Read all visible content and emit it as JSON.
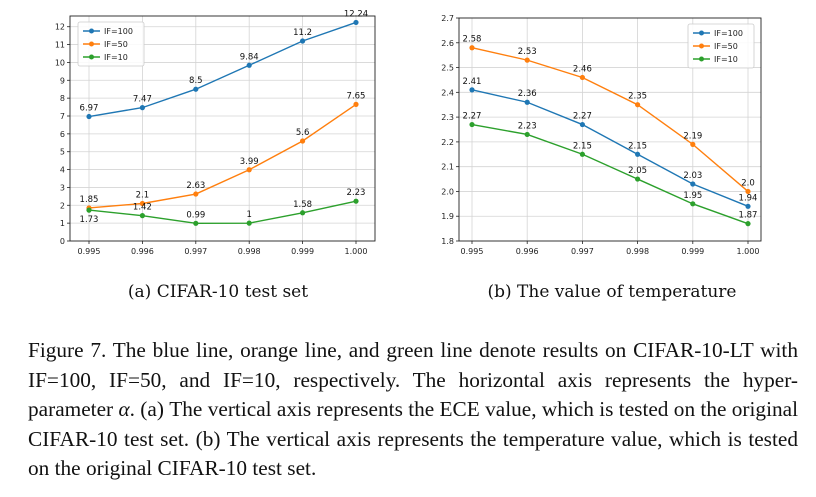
{
  "colors": {
    "blue": "#1f77b4",
    "orange": "#ff7f0e",
    "green": "#2ca02c"
  },
  "chart_data": [
    {
      "type": "line",
      "x": [
        "0.995",
        "0.996",
        "0.997",
        "0.998",
        "0.999",
        "1.000"
      ],
      "yticks": [
        "0",
        "1",
        "2",
        "3",
        "4",
        "5",
        "6",
        "7",
        "8",
        "9",
        "10",
        "11",
        "12"
      ],
      "ylim": [
        0,
        12.6
      ],
      "grid": true,
      "legend_position": "top-left",
      "series": [
        {
          "name": "IF=100",
          "values": [
            6.97,
            7.47,
            8.5,
            9.84,
            11.2,
            12.24
          ],
          "labels": [
            "6.97",
            "7.47",
            "8.5",
            "9.84",
            "11.2",
            "12.24"
          ]
        },
        {
          "name": "IF=50",
          "values": [
            1.85,
            2.1,
            2.63,
            3.99,
            5.6,
            7.65
          ],
          "labels": [
            "1.85",
            "2.1",
            "2.63",
            "3.99",
            "5.6",
            "7.65"
          ]
        },
        {
          "name": "IF=10",
          "values": [
            1.73,
            1.42,
            0.99,
            1.0,
            1.58,
            2.23
          ],
          "labels": [
            "1.73",
            "1.42",
            "0.99",
            "1",
            "1.58",
            "2.23"
          ]
        }
      ]
    },
    {
      "type": "line",
      "x": [
        "0.995",
        "0.996",
        "0.997",
        "0.998",
        "0.999",
        "1.000"
      ],
      "yticks": [
        "1.8",
        "1.9",
        "2.0",
        "2.1",
        "2.2",
        "2.3",
        "2.4",
        "2.5",
        "2.6",
        "2.7"
      ],
      "ylim": [
        1.8,
        2.7
      ],
      "grid": true,
      "legend_position": "top-right",
      "series": [
        {
          "name": "IF=100",
          "values": [
            2.41,
            2.36,
            2.27,
            2.15,
            2.03,
            1.94
          ],
          "labels": [
            "2.41",
            "2.36",
            "2.27",
            "2.15",
            "2.03",
            "1.94"
          ]
        },
        {
          "name": "IF=50",
          "values": [
            2.58,
            2.53,
            2.46,
            2.35,
            2.19,
            2.0
          ],
          "labels": [
            "2.58",
            "2.53",
            "2.46",
            "2.35",
            "2.19",
            "2.0"
          ]
        },
        {
          "name": "IF=10",
          "values": [
            2.27,
            2.23,
            2.15,
            2.05,
            1.95,
            1.87
          ],
          "labels": [
            "2.27",
            "2.23",
            "2.15",
            "2.05",
            "1.95",
            "1.87"
          ]
        }
      ]
    }
  ],
  "subcaptions": {
    "a": "(a) CIFAR-10 test set",
    "b": "(b) The value of temperature"
  },
  "caption": {
    "part1": "Figure 7. The blue line, orange line, and green line denote results on CIFAR-10-LT with IF=100, IF=50, and IF=10, respectively. The horizontal axis represents the hyper-parameter ",
    "alpha": "α",
    "part2": ". (a) The vertical axis represents the ECE value, which is tested on the original CIFAR-10 test set. (b) The vertical axis represents the temperature value, which is tested on the original CIFAR-10 test set."
  }
}
